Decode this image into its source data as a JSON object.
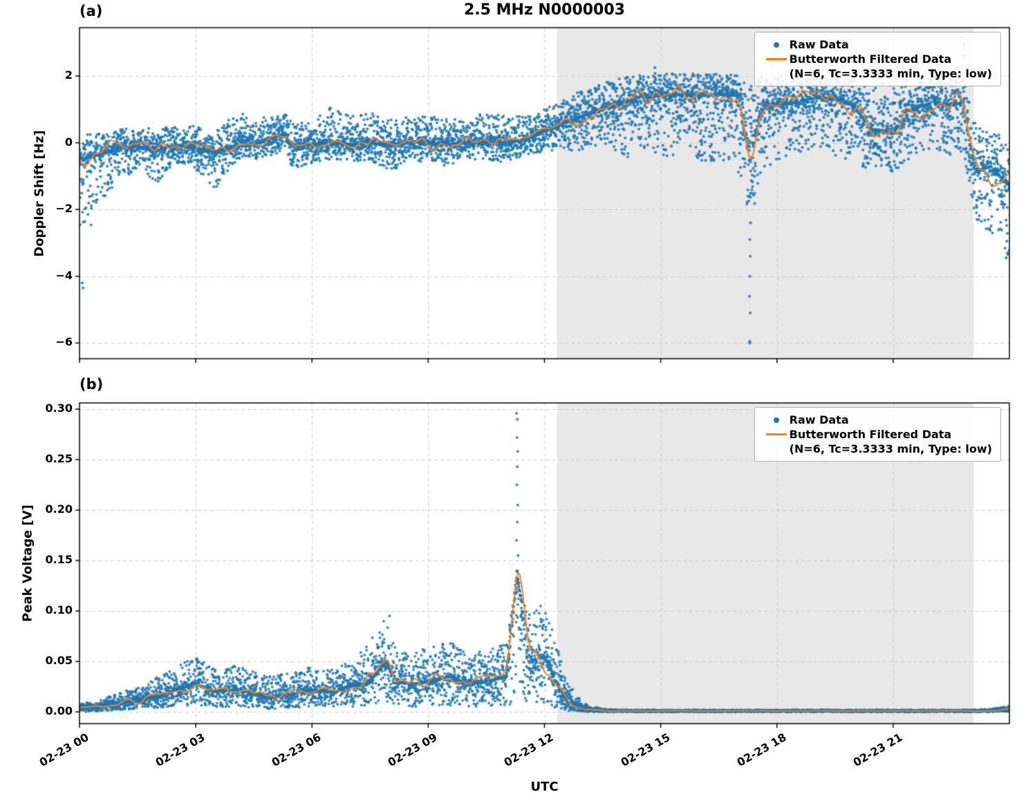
{
  "figure": {
    "title": "2.5 MHz N0000003",
    "xlabel": "UTC",
    "panel_labels": {
      "a": "(a)",
      "b": "(b)"
    },
    "colors": {
      "raw": "#1f77b4",
      "filtered": "#ff7f0e",
      "night_shade": "#e8e8e8",
      "grid": "#cccccc",
      "axis": "#000000",
      "background": "#ffffff"
    },
    "legend": {
      "raw_label": "Raw Data",
      "filtered_label": "Butterworth Filtered Data",
      "filtered_sublabel": "(N=6, Tc=3.3333 min, Type: low)"
    }
  },
  "chart_data": [
    {
      "type": "scatter",
      "panel": "a",
      "title": "2.5 MHz N0000003",
      "ylabel": "Doppler Shift [Hz]",
      "ylim": [
        -6.47,
        3.45
      ],
      "yticks": [
        2,
        0,
        -2,
        -4,
        -6
      ],
      "ytick_labels": [
        "2",
        "0",
        "−2",
        "−4",
        "−6"
      ],
      "xlim_hours": [
        0,
        24
      ],
      "xticks_hours": [
        0,
        3,
        6,
        9,
        12,
        15,
        18,
        21
      ],
      "xtick_labels": [
        "02-23 00",
        "02-23 03",
        "02-23 06",
        "02-23 09",
        "02-23 12",
        "02-23 15",
        "02-23 18",
        "02-23 21"
      ],
      "night_shade_hours": [
        12.32,
        23.08
      ],
      "grid": true,
      "legend_position": "upper right",
      "band_columns": [
        "t_hours",
        "filtered_value",
        "raw_low",
        "raw_high"
      ],
      "series": [
        {
          "name": "Raw Data",
          "style": "scatter",
          "color": "#1f77b4",
          "band": [
            [
              0.0,
              -0.5,
              -2.8,
              0.2
            ],
            [
              0.3,
              -0.45,
              -3.0,
              0.3
            ],
            [
              0.5,
              -0.35,
              -2.0,
              0.3
            ],
            [
              1.0,
              -0.15,
              -1.1,
              0.4
            ],
            [
              1.5,
              -0.12,
              -0.8,
              0.45
            ],
            [
              2.0,
              -0.2,
              -1.2,
              0.45
            ],
            [
              2.5,
              -0.1,
              -0.7,
              0.5
            ],
            [
              3.0,
              -0.15,
              -0.8,
              0.55
            ],
            [
              3.5,
              -0.3,
              -1.4,
              0.4
            ],
            [
              4.0,
              -0.1,
              -0.6,
              0.8
            ],
            [
              4.3,
              0.1,
              -0.4,
              0.9
            ],
            [
              4.5,
              -0.05,
              -0.5,
              0.7
            ],
            [
              5.0,
              0.15,
              -0.4,
              0.9
            ],
            [
              5.3,
              0.25,
              -0.3,
              0.9
            ],
            [
              5.5,
              -0.1,
              -0.8,
              0.6
            ],
            [
              6.0,
              -0.05,
              -0.6,
              0.7
            ],
            [
              6.5,
              0.0,
              -0.5,
              1.1
            ],
            [
              7.0,
              -0.05,
              -0.6,
              0.8
            ],
            [
              7.5,
              0.0,
              -0.5,
              0.9
            ],
            [
              8.0,
              -0.1,
              -0.9,
              0.7
            ],
            [
              8.5,
              0.05,
              -0.5,
              0.8
            ],
            [
              9.0,
              0.0,
              -0.6,
              0.8
            ],
            [
              9.5,
              -0.05,
              -0.7,
              0.7
            ],
            [
              10.0,
              0.0,
              -0.5,
              0.8
            ],
            [
              10.5,
              0.05,
              -0.5,
              0.9
            ],
            [
              11.0,
              0.0,
              -0.6,
              0.8
            ],
            [
              11.5,
              0.1,
              -0.4,
              0.8
            ],
            [
              12.0,
              0.35,
              -0.3,
              1.0
            ],
            [
              12.5,
              0.6,
              -0.3,
              1.3
            ],
            [
              13.0,
              0.8,
              -0.2,
              1.6
            ],
            [
              13.5,
              1.0,
              0.0,
              1.8
            ],
            [
              14.0,
              1.2,
              -0.5,
              1.95
            ],
            [
              14.5,
              1.35,
              -0.3,
              2.05
            ],
            [
              15.0,
              1.4,
              -0.5,
              2.1
            ],
            [
              15.5,
              1.45,
              -0.4,
              2.05
            ],
            [
              16.0,
              1.4,
              -0.7,
              2.1
            ],
            [
              16.5,
              1.45,
              -0.5,
              2.05
            ],
            [
              17.0,
              1.4,
              -0.8,
              2.05
            ],
            [
              17.3,
              -0.5,
              -2.5,
              1.9
            ],
            [
              17.6,
              1.0,
              -0.8,
              2.0
            ],
            [
              18.0,
              1.15,
              -0.6,
              2.0
            ],
            [
              18.5,
              1.2,
              -0.5,
              1.95
            ],
            [
              19.0,
              1.35,
              -0.4,
              2.0
            ],
            [
              19.5,
              1.3,
              -0.5,
              1.95
            ],
            [
              20.0,
              1.1,
              -0.6,
              1.9
            ],
            [
              20.4,
              0.4,
              -0.9,
              1.85
            ],
            [
              21.0,
              0.3,
              -0.9,
              1.75
            ],
            [
              21.5,
              1.0,
              -0.4,
              1.9
            ],
            [
              22.0,
              1.2,
              -0.3,
              2.0
            ],
            [
              22.5,
              1.15,
              -0.4,
              1.95
            ],
            [
              22.8,
              1.2,
              -0.3,
              2.0
            ],
            [
              23.1,
              -0.9,
              -2.3,
              0.6
            ],
            [
              23.5,
              -0.7,
              -2.7,
              0.4
            ],
            [
              24.0,
              -1.3,
              -3.5,
              0.1
            ]
          ],
          "outliers": [
            [
              0.07,
              -4.2
            ],
            [
              0.09,
              -4.35
            ],
            [
              17.3,
              -6.0
            ],
            [
              17.3,
              -5.95
            ],
            [
              17.31,
              -5.1
            ],
            [
              17.29,
              -4.6
            ],
            [
              17.3,
              -4.0
            ],
            [
              17.31,
              -3.4
            ],
            [
              17.3,
              -2.9
            ],
            [
              17.32,
              -2.4
            ],
            [
              22.78,
              3.15
            ],
            [
              22.82,
              2.95
            ],
            [
              22.8,
              2.6
            ],
            [
              14.85,
              2.25
            ],
            [
              23.92,
              -3.45
            ],
            [
              23.95,
              -3.3
            ]
          ]
        },
        {
          "name": "Butterworth Filtered Data (N=6, Tc=3.3333 min, Type: low)",
          "style": "line",
          "color": "#ff7f0e",
          "values_source": "band filtered_value column"
        }
      ]
    },
    {
      "type": "scatter",
      "panel": "b",
      "ylabel": "Peak Voltage [V]",
      "xlabel": "UTC",
      "ylim": [
        -0.0116,
        0.3062
      ],
      "yticks": [
        0.3,
        0.25,
        0.2,
        0.15,
        0.1,
        0.05,
        0.0
      ],
      "ytick_labels": [
        "0.30",
        "0.25",
        "0.20",
        "0.15",
        "0.10",
        "0.05",
        "0.00"
      ],
      "xlim_hours": [
        0,
        24
      ],
      "xticks_hours": [
        0,
        3,
        6,
        9,
        12,
        15,
        18,
        21
      ],
      "xtick_labels": [
        "02-23 00",
        "02-23 03",
        "02-23 06",
        "02-23 09",
        "02-23 12",
        "02-23 15",
        "02-23 18",
        "02-23 21"
      ],
      "night_shade_hours": [
        12.32,
        23.08
      ],
      "grid": true,
      "legend_position": "upper right",
      "band_columns": [
        "t_hours",
        "filtered_value",
        "raw_low",
        "raw_high"
      ],
      "series": [
        {
          "name": "Raw Data",
          "style": "scatter",
          "color": "#1f77b4",
          "band": [
            [
              0.0,
              0.004,
              0.0,
              0.008
            ],
            [
              0.5,
              0.006,
              0.0,
              0.012
            ],
            [
              1.0,
              0.008,
              0.002,
              0.018
            ],
            [
              1.5,
              0.012,
              0.003,
              0.025
            ],
            [
              2.0,
              0.015,
              0.004,
              0.035
            ],
            [
              2.5,
              0.022,
              0.005,
              0.045
            ],
            [
              3.0,
              0.028,
              0.006,
              0.055
            ],
            [
              3.5,
              0.02,
              0.005,
              0.042
            ],
            [
              4.0,
              0.022,
              0.005,
              0.046
            ],
            [
              4.5,
              0.018,
              0.004,
              0.04
            ],
            [
              5.0,
              0.015,
              0.003,
              0.035
            ],
            [
              5.5,
              0.018,
              0.004,
              0.04
            ],
            [
              6.0,
              0.022,
              0.005,
              0.046
            ],
            [
              6.5,
              0.02,
              0.005,
              0.042
            ],
            [
              7.0,
              0.025,
              0.005,
              0.05
            ],
            [
              7.5,
              0.03,
              0.006,
              0.07
            ],
            [
              7.9,
              0.05,
              0.008,
              0.095
            ],
            [
              8.2,
              0.03,
              0.006,
              0.06
            ],
            [
              8.6,
              0.028,
              0.005,
              0.058
            ],
            [
              9.0,
              0.03,
              0.006,
              0.064
            ],
            [
              9.5,
              0.035,
              0.006,
              0.07
            ],
            [
              10.0,
              0.028,
              0.005,
              0.06
            ],
            [
              10.5,
              0.03,
              0.006,
              0.06
            ],
            [
              11.0,
              0.035,
              0.006,
              0.07
            ],
            [
              11.3,
              0.14,
              0.01,
              0.12
            ],
            [
              11.6,
              0.05,
              0.008,
              0.1
            ],
            [
              12.0,
              0.055,
              0.008,
              0.105
            ],
            [
              12.3,
              0.03,
              0.004,
              0.07
            ],
            [
              12.6,
              0.01,
              0.001,
              0.03
            ],
            [
              13.0,
              0.003,
              0.0,
              0.008
            ],
            [
              13.5,
              0.001,
              0.0,
              0.003
            ],
            [
              14.0,
              0.001,
              0.0,
              0.002
            ],
            [
              15.0,
              0.001,
              0.0,
              0.002
            ],
            [
              16.0,
              0.001,
              0.0,
              0.002
            ],
            [
              17.0,
              0.001,
              0.0,
              0.002
            ],
            [
              18.0,
              0.001,
              0.0,
              0.002
            ],
            [
              19.0,
              0.001,
              0.0,
              0.002
            ],
            [
              20.0,
              0.001,
              0.0,
              0.002
            ],
            [
              21.0,
              0.001,
              0.0,
              0.002
            ],
            [
              22.0,
              0.001,
              0.0,
              0.002
            ],
            [
              23.0,
              0.001,
              0.0,
              0.002
            ],
            [
              23.5,
              0.001,
              0.0,
              0.003
            ],
            [
              24.0,
              0.003,
              0.0,
              0.006
            ]
          ],
          "outliers": [
            [
              11.28,
              0.296
            ],
            [
              11.3,
              0.29
            ],
            [
              11.29,
              0.272
            ],
            [
              11.31,
              0.258
            ],
            [
              11.3,
              0.243
            ],
            [
              11.29,
              0.225
            ],
            [
              11.31,
              0.205
            ],
            [
              11.3,
              0.188
            ],
            [
              11.28,
              0.17
            ],
            [
              11.32,
              0.155
            ],
            [
              11.3,
              0.14
            ],
            [
              11.29,
              0.128
            ],
            [
              11.33,
              0.112
            ],
            [
              11.9,
              0.105
            ],
            [
              8.0,
              0.095
            ],
            [
              7.85,
              0.09
            ]
          ]
        },
        {
          "name": "Butterworth Filtered Data (N=6, Tc=3.3333 min, Type: low)",
          "style": "line",
          "color": "#ff7f0e",
          "values_source": "band filtered_value column"
        }
      ]
    }
  ]
}
